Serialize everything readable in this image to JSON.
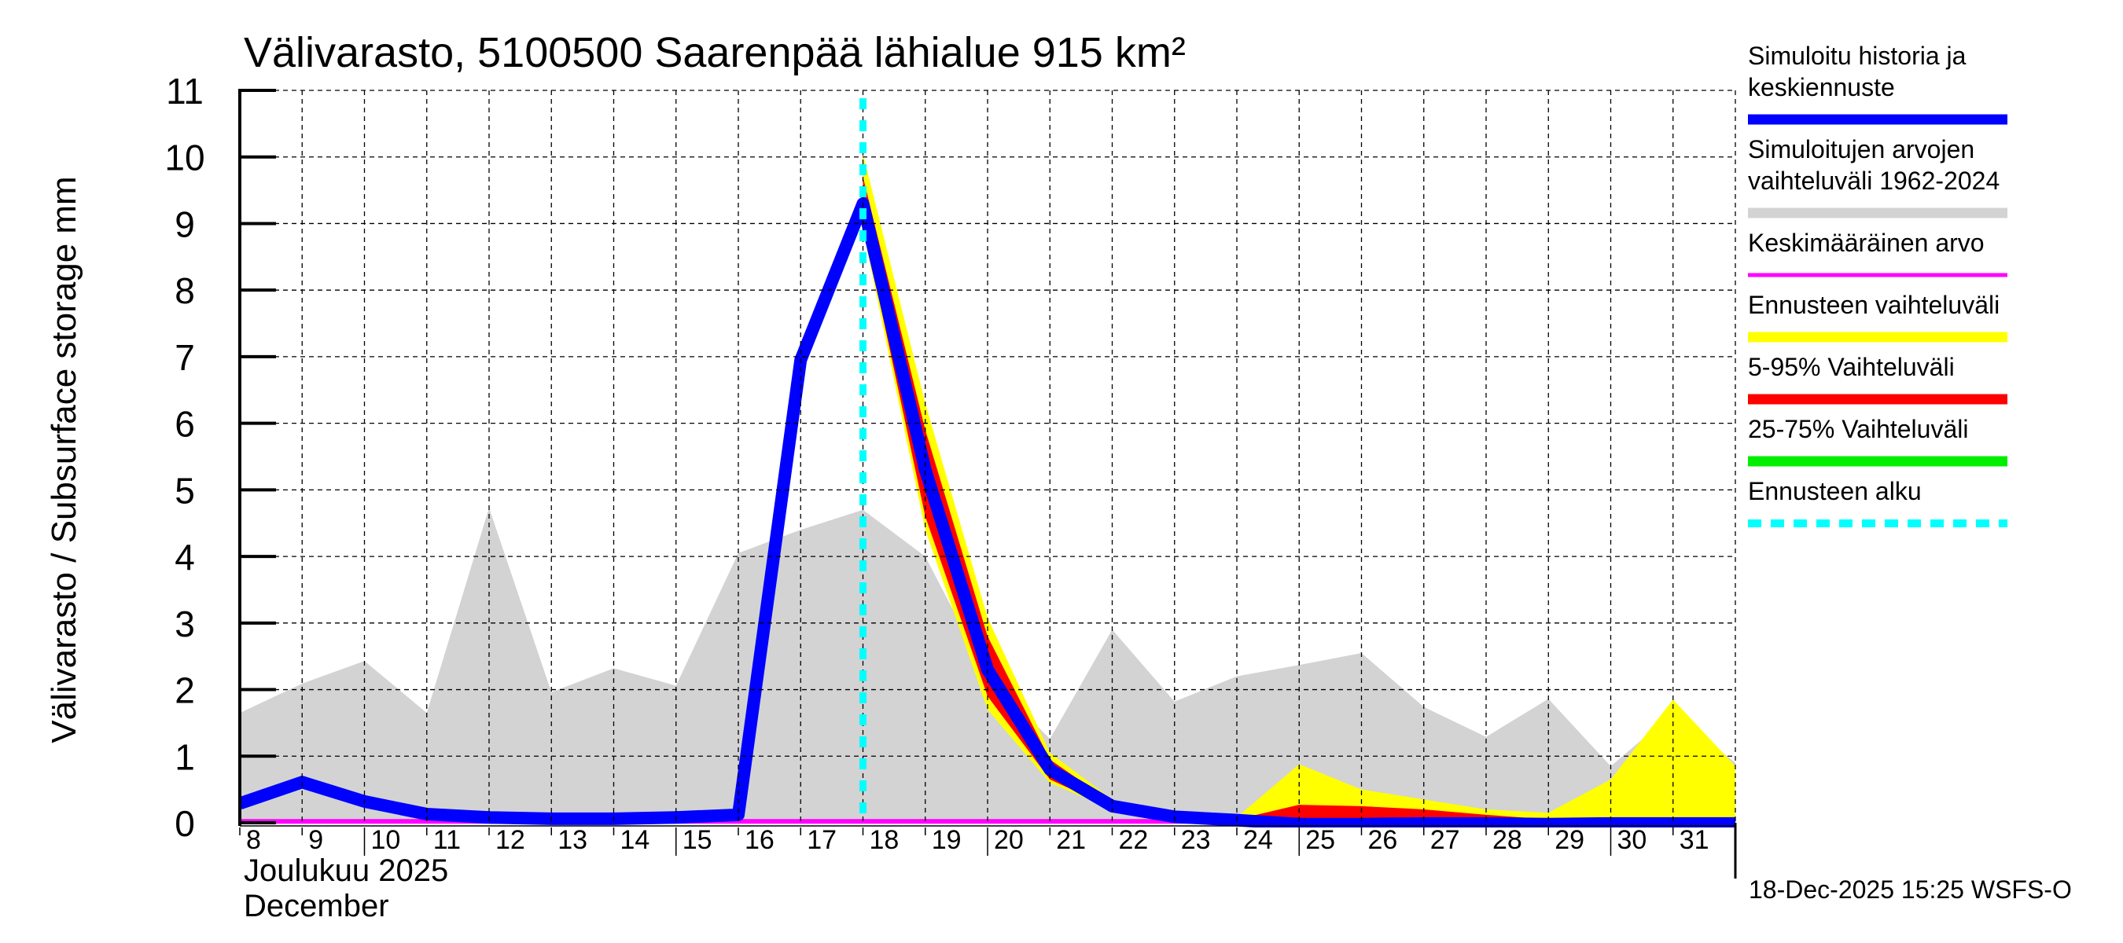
{
  "chart_data": {
    "type": "area",
    "title": "Välivarasto, 5100500 Saarenpää lähialue 915 km²",
    "ylabel": "Välivarasto / Subsurface storage  mm",
    "xlabel_line1": "Joulukuu  2025",
    "xlabel_line2": "December",
    "ylim": [
      0,
      11
    ],
    "xlim": [
      8,
      32
    ],
    "yticks": [
      0,
      1,
      2,
      3,
      4,
      5,
      6,
      7,
      8,
      9,
      10,
      11
    ],
    "xtick_labels": [
      "8",
      "9",
      "10",
      "11",
      "12",
      "13",
      "14",
      "15",
      "16",
      "17",
      "18",
      "19",
      "20",
      "21",
      "22",
      "23",
      "24",
      "25",
      "26",
      "27",
      "28",
      "29",
      "30",
      "31"
    ],
    "grid": true,
    "forecast_start_day": 18,
    "legend_position": "right",
    "legend": [
      {
        "label_lines": [
          "Simuloitu historia ja",
          "keskiennuste"
        ],
        "color": "#0000ff",
        "style": "thick"
      },
      {
        "label_lines": [
          "Simuloitujen arvojen",
          "vaihteluväli 1962-2024"
        ],
        "color": "#d3d3d3",
        "style": "thick"
      },
      {
        "label_lines": [
          "Keskimääräinen arvo"
        ],
        "color": "#ff00ff",
        "style": "thin"
      },
      {
        "label_lines": [
          "Ennusteen vaihteluväli"
        ],
        "color": "#ffff00",
        "style": "thick"
      },
      {
        "label_lines": [
          "5-95% Vaihteluväli"
        ],
        "color": "#ff0000",
        "style": "thick"
      },
      {
        "label_lines": [
          "25-75% Vaihteluväli"
        ],
        "color": "#00ee00",
        "style": "thick"
      },
      {
        "label_lines": [
          "Ennusteen alku"
        ],
        "color": "#00ffff",
        "style": "dashed"
      }
    ],
    "series": {
      "historical_range": {
        "name": "Simuloitujen arvojen vaihteluväli 1962-2024",
        "color": "#d3d3d3",
        "x": [
          8,
          9,
          10,
          11,
          12,
          13,
          14,
          15,
          16,
          17,
          18,
          19,
          20,
          21,
          22,
          23,
          24,
          25,
          26,
          27,
          28,
          29,
          30,
          31,
          32
        ],
        "upper": [
          1.65,
          2.09,
          2.43,
          1.65,
          4.73,
          1.96,
          2.32,
          2.06,
          4.05,
          4.4,
          4.7,
          4.0,
          2.2,
          1.26,
          2.9,
          1.82,
          2.2,
          2.37,
          2.55,
          1.74,
          1.29,
          1.86,
          0.85,
          1.65,
          0.9
        ],
        "lower": [
          0,
          0,
          0,
          0,
          0,
          0,
          0,
          0,
          0,
          0,
          0,
          0,
          0,
          0,
          0,
          0,
          0,
          0,
          0,
          0,
          0,
          0,
          0,
          0,
          0
        ]
      },
      "forecast_range": {
        "name": "Ennusteen vaihteluväli",
        "color": "#ffff00",
        "x": [
          18,
          19,
          20,
          21,
          22,
          23,
          24,
          25,
          26,
          27,
          28,
          29,
          30,
          31,
          32
        ],
        "upper": [
          10.05,
          6.3,
          3.08,
          1.05,
          0.35,
          0.15,
          0.08,
          0.88,
          0.5,
          0.35,
          0.2,
          0.15,
          0.65,
          1.85,
          0.85
        ],
        "lower": [
          8.9,
          4.4,
          1.7,
          0.6,
          0.2,
          0.05,
          0.0,
          0.0,
          0.0,
          0.0,
          0.0,
          0.0,
          0.0,
          0.0,
          0.0
        ]
      },
      "range_5_95": {
        "name": "5-95% Vaihteluväli",
        "color": "#ff0000",
        "x": [
          18,
          19,
          20,
          21,
          22,
          23,
          24,
          25,
          26,
          27,
          28,
          29,
          30,
          31,
          32
        ],
        "upper": [
          9.7,
          5.9,
          2.8,
          0.95,
          0.3,
          0.12,
          0.05,
          0.27,
          0.25,
          0.2,
          0.12,
          0.05,
          0.08,
          0.05,
          0.05
        ],
        "lower": [
          9.0,
          4.6,
          1.9,
          0.65,
          0.22,
          0.07,
          0.0,
          0.0,
          0.0,
          0.0,
          0.0,
          0.0,
          0.0,
          0.0,
          0.0
        ]
      },
      "range_25_75": {
        "name": "25-75% Vaihteluväli",
        "color": "#00ee00",
        "x": [
          18,
          19,
          20,
          21,
          22,
          23,
          24,
          25,
          26,
          27,
          28,
          29,
          30,
          31,
          32
        ],
        "upper": [
          9.45,
          5.5,
          2.45,
          0.85,
          0.27,
          0.1,
          0.03,
          0.05,
          0.05,
          0.04,
          0.03,
          0.02,
          0.02,
          0.02,
          0.02
        ],
        "lower": [
          9.2,
          5.1,
          2.15,
          0.75,
          0.24,
          0.08,
          0.01,
          0.0,
          0.0,
          0.0,
          0.0,
          0.0,
          0.0,
          0.0,
          0.0
        ]
      },
      "simulated_median": {
        "name": "Simuloitu historia ja keskiennuste",
        "color": "#0000ff",
        "x": [
          8,
          9,
          10,
          11,
          12,
          13,
          14,
          15,
          16,
          17,
          18,
          19,
          20,
          21,
          22,
          23,
          24,
          25,
          26,
          27,
          28,
          29,
          30,
          31,
          32
        ],
        "values": [
          0.29,
          0.61,
          0.32,
          0.13,
          0.08,
          0.06,
          0.06,
          0.08,
          0.12,
          6.95,
          9.3,
          5.3,
          2.3,
          0.8,
          0.25,
          0.09,
          0.04,
          -0.02,
          -0.02,
          -0.01,
          -0.01,
          -0.02,
          -0.01,
          -0.01,
          -0.01
        ]
      },
      "mean": {
        "name": "Keskimääräinen arvo",
        "color": "#ff00ff",
        "x": [
          8,
          32
        ],
        "values": [
          0.02,
          0.02
        ]
      }
    },
    "footer": "18-Dec-2025 15:25 WSFS-O"
  }
}
